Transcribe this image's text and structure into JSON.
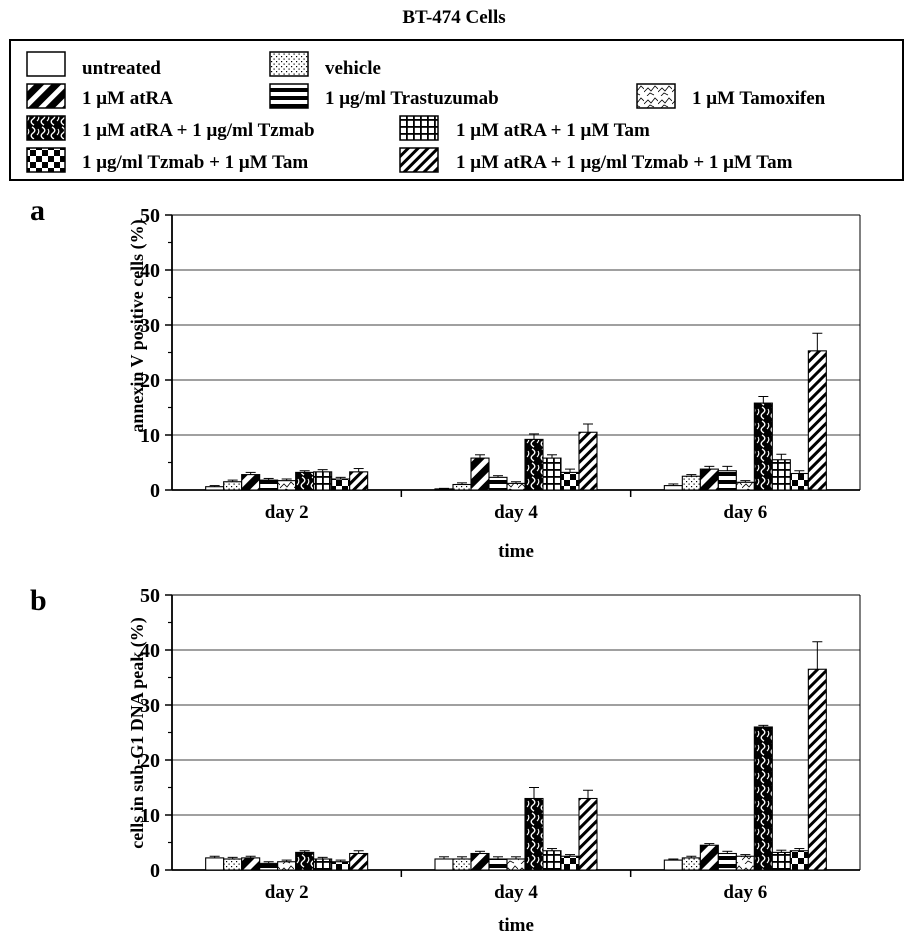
{
  "figure_title": "BT-474 Cells",
  "legend": [
    {
      "label": "untreated",
      "pattern": "untreated"
    },
    {
      "label": "vehicle",
      "pattern": "vehicle"
    },
    {
      "label": "1 μM atRA",
      "pattern": "atra"
    },
    {
      "label": "1 μg/ml Trastuzumab",
      "pattern": "tzmab"
    },
    {
      "label": "1 μM Tamoxifen",
      "pattern": "tam"
    },
    {
      "label": "1 μM atRA + 1 μg/ml Tzmab",
      "pattern": "atra_tzmab"
    },
    {
      "label": "1 μM atRA + 1 μM Tam",
      "pattern": "atra_tam"
    },
    {
      "label": "1 μg/ml Tzmab + 1 μM Tam",
      "pattern": "tzmab_tam"
    },
    {
      "label": "1 μM atRA + 1 μg/ml Tzmab + 1 μM Tam",
      "pattern": "triple"
    }
  ],
  "chart_data": [
    {
      "type": "bar",
      "panel_label": "a",
      "xlabel": "time",
      "ylabel": "annexin V positive cells (%)",
      "ylim": [
        0,
        50
      ],
      "yticks": [
        0,
        10,
        20,
        30,
        40,
        50
      ],
      "grid": true,
      "categories": [
        "day 2",
        "day 4",
        "day 6"
      ],
      "series": [
        {
          "name": "untreated",
          "values": [
            0.6,
            0.2,
            0.8
          ],
          "errors": [
            0.2,
            0.1,
            0.3
          ]
        },
        {
          "name": "vehicle",
          "values": [
            1.5,
            1.0,
            2.5
          ],
          "errors": [
            0.3,
            0.3,
            0.3
          ]
        },
        {
          "name": "1 μM atRA",
          "values": [
            2.8,
            5.8,
            3.8
          ],
          "errors": [
            0.4,
            0.6,
            0.5
          ]
        },
        {
          "name": "1 μg/ml Trastuzumab",
          "values": [
            1.8,
            2.3,
            3.5
          ],
          "errors": [
            0.3,
            0.3,
            0.8
          ]
        },
        {
          "name": "1 μM Tamoxifen",
          "values": [
            1.7,
            1.2,
            1.4
          ],
          "errors": [
            0.3,
            0.3,
            0.3
          ]
        },
        {
          "name": "1 μM atRA + 1 μg/ml Tzmab",
          "values": [
            3.2,
            9.2,
            15.8
          ],
          "errors": [
            0.3,
            1.0,
            1.2
          ]
        },
        {
          "name": "1 μM atRA + 1 μM Tam",
          "values": [
            3.3,
            5.8,
            5.5
          ],
          "errors": [
            0.4,
            0.6,
            1.0
          ]
        },
        {
          "name": "1 μg/ml Tzmab + 1 μM Tam",
          "values": [
            2.0,
            3.2,
            3.0
          ],
          "errors": [
            0.3,
            0.6,
            0.5
          ]
        },
        {
          "name": "1 μM atRA + 1 μg/ml Tzmab + 1 μM Tam",
          "values": [
            3.3,
            10.5,
            25.3
          ],
          "errors": [
            0.6,
            1.5,
            3.2
          ]
        }
      ]
    },
    {
      "type": "bar",
      "panel_label": "b",
      "xlabel": "time",
      "ylabel": "cells in sub-G1 DNA peak (%)",
      "ylim": [
        0,
        50
      ],
      "yticks": [
        0,
        10,
        20,
        30,
        40,
        50
      ],
      "grid": true,
      "categories": [
        "day 2",
        "day 4",
        "day 6"
      ],
      "series": [
        {
          "name": "untreated",
          "values": [
            2.2,
            2.0,
            1.8
          ],
          "errors": [
            0.3,
            0.4,
            0.2
          ]
        },
        {
          "name": "vehicle",
          "values": [
            2.0,
            2.0,
            2.2
          ],
          "errors": [
            0.3,
            0.4,
            0.3
          ]
        },
        {
          "name": "1 μM atRA",
          "values": [
            2.2,
            3.0,
            4.5
          ],
          "errors": [
            0.3,
            0.4,
            0.3
          ]
        },
        {
          "name": "1 μg/ml Trastuzumab",
          "values": [
            1.2,
            2.0,
            3.0
          ],
          "errors": [
            0.3,
            0.4,
            0.4
          ]
        },
        {
          "name": "1 μM Tamoxifen",
          "values": [
            1.5,
            2.0,
            2.5
          ],
          "errors": [
            0.3,
            0.4,
            0.3
          ]
        },
        {
          "name": "1 μM atRA + 1 μg/ml Tzmab",
          "values": [
            3.2,
            13.0,
            26.0
          ],
          "errors": [
            0.3,
            2.0,
            0.3
          ]
        },
        {
          "name": "1 μM atRA + 1 μM Tam",
          "values": [
            2.0,
            3.5,
            3.2
          ],
          "errors": [
            0.3,
            0.4,
            0.4
          ]
        },
        {
          "name": "1 μg/ml Tzmab + 1 μM Tam",
          "values": [
            1.5,
            2.5,
            3.5
          ],
          "errors": [
            0.3,
            0.3,
            0.4
          ]
        },
        {
          "name": "1 μM atRA + 1 μg/ml Tzmab + 1 μM Tam",
          "values": [
            3.0,
            13.0,
            36.5
          ],
          "errors": [
            0.5,
            1.5,
            5.0
          ]
        }
      ]
    }
  ]
}
